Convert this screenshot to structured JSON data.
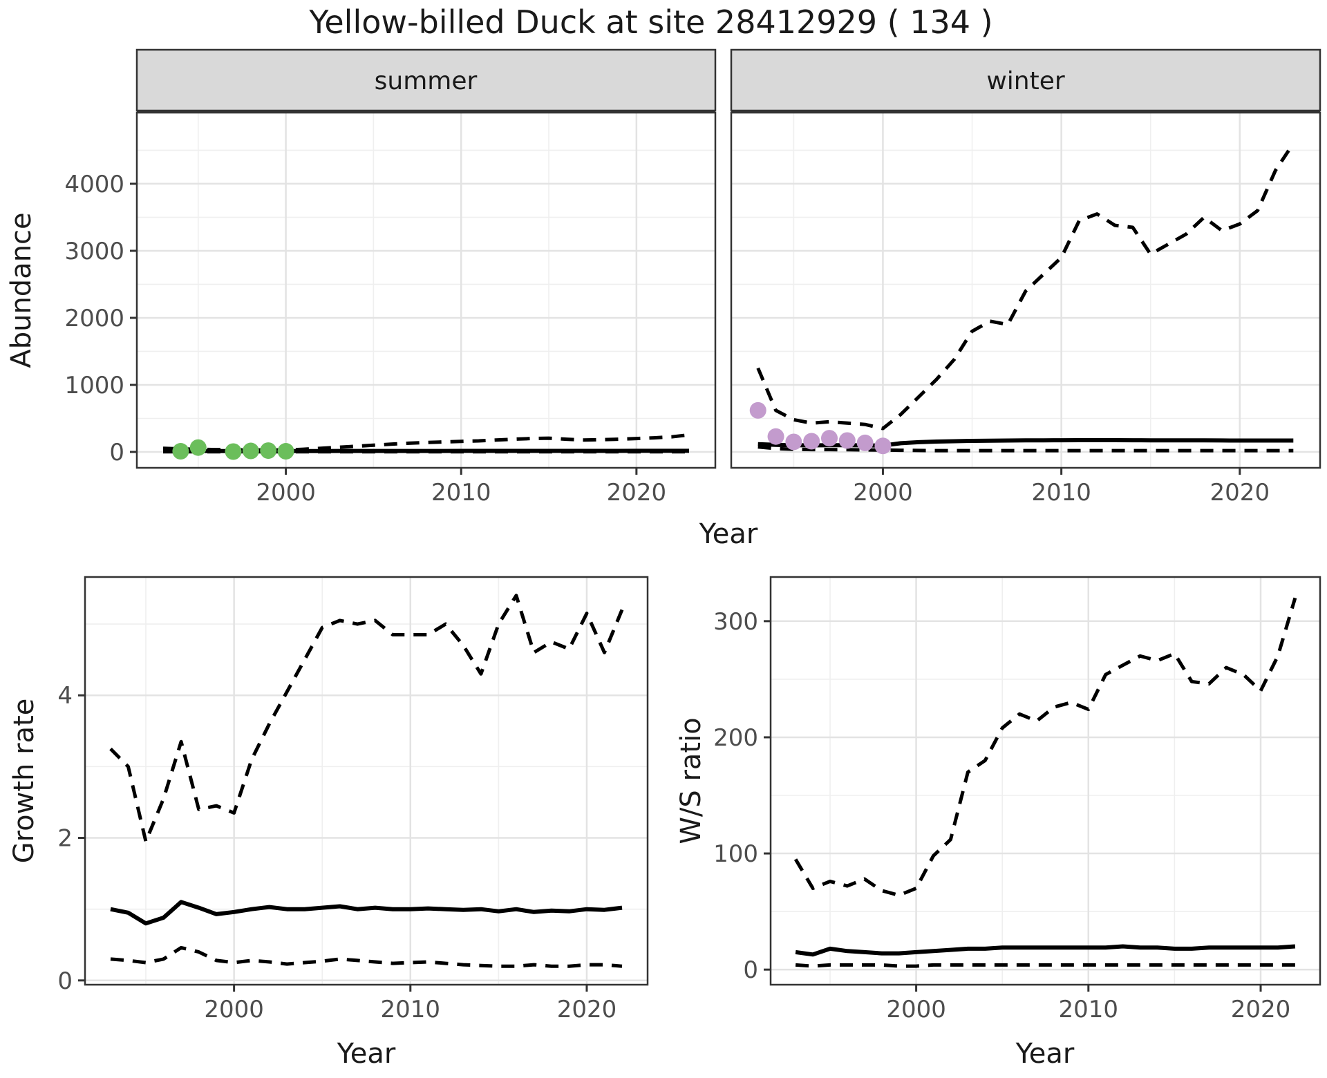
{
  "title": "Yellow-billed Duck at site 28412929 ( 134 )",
  "colors": {
    "line": "#000000",
    "summer_points": "#6BBE5B",
    "winter_points": "#C39BCD",
    "strip_fill": "#D9D9D9",
    "panel_border": "#333333",
    "grid_major": "#E3E3E3",
    "grid_minor": "#EFEFEF",
    "tick_text": "#4D4D4D"
  },
  "chart_data": {
    "abundance": {
      "type": "line",
      "xlabel": "Year",
      "ylabel": "Abundance",
      "x": [
        1993,
        1994,
        1995,
        1996,
        1997,
        1998,
        1999,
        2000,
        2001,
        2002,
        2003,
        2004,
        2005,
        2006,
        2007,
        2008,
        2009,
        2010,
        2011,
        2012,
        2013,
        2014,
        2015,
        2016,
        2017,
        2018,
        2019,
        2020,
        2021,
        2022,
        2023
      ],
      "xticks": [
        2000,
        2010,
        2020
      ],
      "xtick_labels": [
        "2000",
        "2010",
        "2020"
      ],
      "yticks": [
        0,
        1000,
        2000,
        3000,
        4000
      ],
      "ytick_labels": [
        "0",
        "1000",
        "2000",
        "3000",
        "4000"
      ],
      "xlim": [
        1991.5,
        2024.5
      ],
      "ylim": [
        -237,
        5061
      ],
      "grid": true,
      "legend": "none",
      "line_styles": {
        "upper_ci": "dashed",
        "median": "solid",
        "lower_ci": "dashed"
      },
      "facets": [
        {
          "label": "summer",
          "point_color": "#6BBE5B",
          "upper_ci": [
            55,
            45,
            40,
            35,
            32,
            30,
            30,
            28,
            40,
            55,
            70,
            85,
            100,
            115,
            130,
            140,
            150,
            158,
            165,
            178,
            190,
            200,
            205,
            190,
            178,
            182,
            190,
            200,
            210,
            225,
            255
          ],
          "median": [
            12,
            12,
            12,
            12,
            12,
            12,
            12,
            12,
            13,
            13,
            14,
            14,
            15,
            15,
            15,
            15,
            15,
            16,
            16,
            16,
            16,
            16,
            16,
            16,
            16,
            16,
            16,
            17,
            17,
            17,
            17
          ],
          "lower_ci": [
            2,
            2,
            2,
            2,
            2,
            2,
            2,
            2,
            2,
            2,
            2,
            2,
            2,
            2,
            2,
            2,
            2,
            2,
            2,
            2,
            2,
            2,
            2,
            2,
            2,
            2,
            2,
            2,
            2,
            2,
            2
          ],
          "obs_years": [
            1994,
            1995,
            1997,
            1998,
            1999,
            2000
          ],
          "obs_values": [
            10,
            65,
            5,
            15,
            20,
            10
          ]
        },
        {
          "label": "winter",
          "point_color": "#C39BCD",
          "upper_ci": [
            1250,
            620,
            480,
            430,
            450,
            430,
            410,
            350,
            560,
            820,
            1080,
            1380,
            1800,
            1950,
            1900,
            2400,
            2650,
            2900,
            3450,
            3550,
            3380,
            3350,
            2950,
            3100,
            3250,
            3500,
            3300,
            3400,
            3600,
            4200,
            4600
          ],
          "median": [
            115,
            105,
            100,
            98,
            100,
            100,
            98,
            95,
            130,
            145,
            155,
            160,
            165,
            168,
            170,
            172,
            173,
            174,
            175,
            175,
            175,
            174,
            173,
            172,
            172,
            172,
            171,
            170,
            170,
            170,
            170
          ],
          "lower_ci": [
            75,
            50,
            40,
            35,
            35,
            33,
            30,
            28,
            25,
            22,
            20,
            20,
            20,
            20,
            20,
            20,
            20,
            20,
            20,
            20,
            20,
            20,
            20,
            20,
            20,
            20,
            20,
            20,
            20,
            20,
            20
          ],
          "obs_years": [
            1993,
            1994,
            1995,
            1996,
            1997,
            1998,
            1999,
            2000
          ],
          "obs_values": [
            620,
            230,
            150,
            160,
            205,
            170,
            135,
            90
          ]
        }
      ]
    },
    "growth_rate": {
      "type": "line",
      "xlabel": "Year",
      "ylabel": "Growth rate",
      "x": [
        1993,
        1994,
        1995,
        1996,
        1997,
        1998,
        1999,
        2000,
        2001,
        2002,
        2003,
        2004,
        2005,
        2006,
        2007,
        2008,
        2009,
        2010,
        2011,
        2012,
        2013,
        2014,
        2015,
        2016,
        2017,
        2018,
        2019,
        2020,
        2021,
        2022
      ],
      "xticks": [
        2000,
        2010,
        2020
      ],
      "xtick_labels": [
        "2000",
        "2010",
        "2020"
      ],
      "yticks": [
        0,
        2,
        4
      ],
      "ytick_labels": [
        "0",
        "2",
        "4"
      ],
      "xlim": [
        1991.55,
        2023.45
      ],
      "ylim": [
        -0.06,
        5.66
      ],
      "grid": true,
      "legend": "none",
      "line_styles": {
        "upper_ci": "dashed",
        "median": "solid",
        "lower_ci": "dashed"
      },
      "upper_ci": [
        3.25,
        3.0,
        1.95,
        2.55,
        3.35,
        2.4,
        2.45,
        2.35,
        3.1,
        3.6,
        4.05,
        4.5,
        4.95,
        5.05,
        5.0,
        5.05,
        4.85,
        4.85,
        4.85,
        5.0,
        4.7,
        4.3,
        5.0,
        5.4,
        4.6,
        4.75,
        4.65,
        5.15,
        4.6,
        5.2
      ],
      "median": [
        1.0,
        0.95,
        0.8,
        0.88,
        1.1,
        1.02,
        0.93,
        0.96,
        1.0,
        1.03,
        1.0,
        1.0,
        1.02,
        1.04,
        1.0,
        1.02,
        1.0,
        1.0,
        1.01,
        1.0,
        0.99,
        1.0,
        0.97,
        1.0,
        0.96,
        0.98,
        0.97,
        1.0,
        0.99,
        1.02
      ],
      "lower_ci": [
        0.3,
        0.28,
        0.25,
        0.3,
        0.46,
        0.4,
        0.28,
        0.25,
        0.28,
        0.26,
        0.23,
        0.25,
        0.27,
        0.3,
        0.28,
        0.26,
        0.24,
        0.25,
        0.26,
        0.24,
        0.22,
        0.21,
        0.2,
        0.2,
        0.22,
        0.2,
        0.2,
        0.22,
        0.22,
        0.2
      ]
    },
    "ws_ratio": {
      "type": "line",
      "xlabel": "Year",
      "ylabel": "W/S ratio",
      "x": [
        1993,
        1994,
        1995,
        1996,
        1997,
        1998,
        1999,
        2000,
        2001,
        2002,
        2003,
        2004,
        2005,
        2006,
        2007,
        2008,
        2009,
        2010,
        2011,
        2012,
        2013,
        2014,
        2015,
        2016,
        2017,
        2018,
        2019,
        2020,
        2021,
        2022
      ],
      "xticks": [
        2000,
        2010,
        2020
      ],
      "xtick_labels": [
        "2000",
        "2010",
        "2020"
      ],
      "yticks": [
        0,
        100,
        200,
        300
      ],
      "ytick_labels": [
        "0",
        "100",
        "200",
        "300"
      ],
      "xlim": [
        1991.55,
        2023.45
      ],
      "ylim": [
        -13,
        338
      ],
      "grid": true,
      "legend": "none",
      "line_styles": {
        "upper_ci": "dashed",
        "median": "solid",
        "lower_ci": "dashed"
      },
      "upper_ci": [
        95,
        70,
        76,
        72,
        78,
        68,
        64,
        70,
        98,
        112,
        170,
        180,
        208,
        220,
        214,
        226,
        230,
        224,
        254,
        262,
        270,
        266,
        272,
        248,
        246,
        260,
        254,
        240,
        270,
        320
      ],
      "median": [
        15,
        13,
        18,
        16,
        15,
        14,
        14,
        15,
        16,
        17,
        18,
        18,
        19,
        19,
        19,
        19,
        19,
        19,
        19,
        20,
        19,
        19,
        18,
        18,
        19,
        19,
        19,
        19,
        19,
        20
      ],
      "lower_ci": [
        4,
        3,
        4,
        4,
        4,
        4,
        3,
        3,
        4,
        4,
        4,
        4,
        4,
        4,
        4,
        4,
        4,
        4,
        4,
        4,
        4,
        4,
        4,
        4,
        4,
        4,
        4,
        4,
        4,
        4
      ]
    }
  }
}
